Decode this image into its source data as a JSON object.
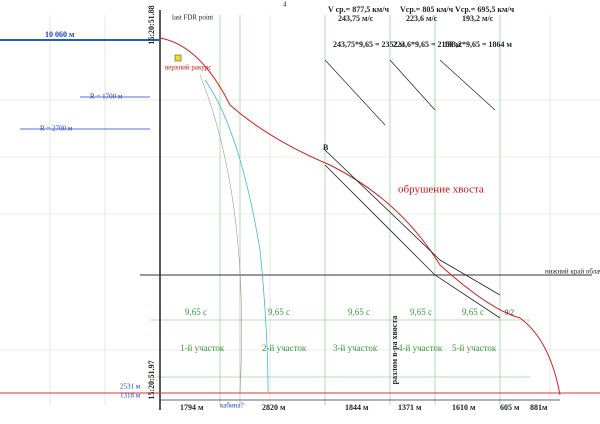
{
  "header": {
    "page_number": "4"
  },
  "left": {
    "time_top": "15:20:51.88",
    "time_bottom": "15:20:51.97",
    "distance_top": "10 060 м",
    "radius_1": "R = 1700 м",
    "radius_2": "R = 2700 м",
    "distance_2531": "2531 м",
    "distance_1318": "1318 м",
    "cabin": "кабина?"
  },
  "top_points": {
    "last_fdr": "last FDR point",
    "upper_view": "верхний ракурс",
    "marker_b": "B",
    "marker_end": "9/2"
  },
  "speeds": [
    {
      "v_kmh": "V ср.= 877,5 км/ч",
      "v_ms": "243,75 м/с",
      "calc": "243,75*9,65 = 2352 м"
    },
    {
      "v_kmh": "Vср.= 805 км/ч",
      "v_ms": "223,6 м/с",
      "calc": "223,6*9,65 = 2158 м"
    },
    {
      "v_kmh": "Vср.= 695,5 км/ч",
      "v_ms": "193,2 м/с",
      "calc": "193,2*9,65 = 1864 м"
    }
  ],
  "tail_collapse": "обрушение хвоста",
  "tail_break": "разлом в-ра хвоста",
  "cloud_edge": "нижний край облачности",
  "intervals": [
    "9,65 с",
    "9,65 с",
    "9,65 с",
    "9,65 с",
    "9,65 с"
  ],
  "segments": [
    "1-й участок",
    "2-й участок",
    "3-й участок",
    "4-й участок",
    "5-й участок"
  ],
  "bottom_distances": [
    "1794 м",
    "2820 м",
    "1844 м",
    "1371 м",
    "1610 м",
    "605 м",
    "881м"
  ]
}
